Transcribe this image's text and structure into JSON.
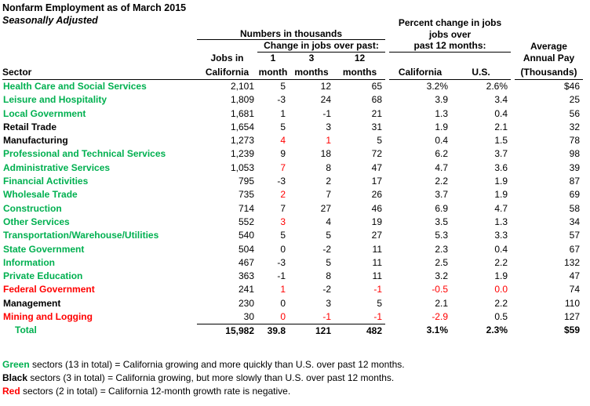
{
  "title": "Nonfarm Employment as of March 2015",
  "subtitle": "Seasonally Adjusted",
  "colors": {
    "green": "#00B050",
    "black": "#000000",
    "red": "#FF0000"
  },
  "header": {
    "numbers_group": "Numbers in thousands",
    "change_group": "Change in jobs over past:",
    "percent_line1": "Percent change in jobs",
    "percent_line2": "jobs over",
    "percent_line3": "past 12 months:",
    "pay_line1": "Average",
    "pay_line2": "Annual Pay",
    "pay_line3": "(Thousands)",
    "sector": "Sector",
    "jobs_line1": "Jobs in",
    "jobs_line2": "California",
    "mo1_line1": "1",
    "mo1_line2": "month",
    "mo3_line1": "3",
    "mo3_line2": "months",
    "mo12_line1": "12",
    "mo12_line2": "months",
    "ca": "California",
    "us": "U.S."
  },
  "table": {
    "columns": [
      "Jobs in California",
      "1 month",
      "3 months",
      "12 months",
      "California %",
      "U.S. %",
      "Average Annual Pay (Thousands)"
    ],
    "rows": [
      {
        "sector": "Health Care and Social Services",
        "color": "green",
        "cells": [
          {
            "v": "2,101"
          },
          {
            "v": "5"
          },
          {
            "v": "12"
          },
          {
            "v": "65"
          },
          {
            "v": "3.2%"
          },
          {
            "v": "2.6%"
          },
          {
            "v": "$46"
          }
        ]
      },
      {
        "sector": "Leisure and Hospitality",
        "color": "green",
        "cells": [
          {
            "v": "1,809"
          },
          {
            "v": "-3"
          },
          {
            "v": "24"
          },
          {
            "v": "68"
          },
          {
            "v": "3.9"
          },
          {
            "v": "3.4"
          },
          {
            "v": "25"
          }
        ]
      },
      {
        "sector": "Local Government",
        "color": "green",
        "cells": [
          {
            "v": "1,681"
          },
          {
            "v": "1"
          },
          {
            "v": "-1"
          },
          {
            "v": "21"
          },
          {
            "v": "1.3"
          },
          {
            "v": "0.4"
          },
          {
            "v": "56"
          }
        ]
      },
      {
        "sector": "Retail Trade",
        "color": "black",
        "cells": [
          {
            "v": "1,654"
          },
          {
            "v": "5"
          },
          {
            "v": "3"
          },
          {
            "v": "31"
          },
          {
            "v": "1.9"
          },
          {
            "v": "2.1"
          },
          {
            "v": "32"
          }
        ]
      },
      {
        "sector": "Manufacturing",
        "color": "black",
        "cells": [
          {
            "v": "1,273"
          },
          {
            "v": "4",
            "red": true
          },
          {
            "v": "1",
            "red": true
          },
          {
            "v": "5"
          },
          {
            "v": "0.4"
          },
          {
            "v": "1.5"
          },
          {
            "v": "78"
          }
        ]
      },
      {
        "sector": "Professional and Technical Services",
        "color": "green",
        "cells": [
          {
            "v": "1,239"
          },
          {
            "v": "9"
          },
          {
            "v": "18"
          },
          {
            "v": "72"
          },
          {
            "v": "6.2"
          },
          {
            "v": "3.7"
          },
          {
            "v": "98"
          }
        ]
      },
      {
        "sector": "Administrative Services",
        "color": "green",
        "cells": [
          {
            "v": "1,053"
          },
          {
            "v": "7",
            "red": true
          },
          {
            "v": "8"
          },
          {
            "v": "47"
          },
          {
            "v": "4.7"
          },
          {
            "v": "3.6"
          },
          {
            "v": "39"
          }
        ]
      },
      {
        "sector": "Financial Activities",
        "color": "green",
        "cells": [
          {
            "v": "795"
          },
          {
            "v": "-3"
          },
          {
            "v": "2"
          },
          {
            "v": "17"
          },
          {
            "v": "2.2"
          },
          {
            "v": "1.9"
          },
          {
            "v": "87"
          }
        ]
      },
      {
        "sector": "Wholesale Trade",
        "color": "green",
        "cells": [
          {
            "v": "735"
          },
          {
            "v": "2",
            "red": true
          },
          {
            "v": "7"
          },
          {
            "v": "26"
          },
          {
            "v": "3.7"
          },
          {
            "v": "1.9"
          },
          {
            "v": "69"
          }
        ]
      },
      {
        "sector": "Construction",
        "color": "green",
        "cells": [
          {
            "v": "714"
          },
          {
            "v": "7"
          },
          {
            "v": "27"
          },
          {
            "v": "46"
          },
          {
            "v": "6.9"
          },
          {
            "v": "4.7"
          },
          {
            "v": "58"
          }
        ]
      },
      {
        "sector": "Other Services",
        "color": "green",
        "cells": [
          {
            "v": "552"
          },
          {
            "v": "3",
            "red": true
          },
          {
            "v": "4"
          },
          {
            "v": "19"
          },
          {
            "v": "3.5"
          },
          {
            "v": "1.3"
          },
          {
            "v": "34"
          }
        ]
      },
      {
        "sector": "Transportation/Warehouse/Utilities",
        "color": "green",
        "cells": [
          {
            "v": "540"
          },
          {
            "v": "5"
          },
          {
            "v": "5"
          },
          {
            "v": "27"
          },
          {
            "v": "5.3"
          },
          {
            "v": "3.3"
          },
          {
            "v": "57"
          }
        ]
      },
      {
        "sector": "State Government",
        "color": "green",
        "cells": [
          {
            "v": "504"
          },
          {
            "v": "0"
          },
          {
            "v": "-2"
          },
          {
            "v": "11"
          },
          {
            "v": "2.3"
          },
          {
            "v": "0.4"
          },
          {
            "v": "67"
          }
        ]
      },
      {
        "sector": "Information",
        "color": "green",
        "cells": [
          {
            "v": "467"
          },
          {
            "v": "-3"
          },
          {
            "v": "5"
          },
          {
            "v": "11"
          },
          {
            "v": "2.5"
          },
          {
            "v": "2.2"
          },
          {
            "v": "132"
          }
        ]
      },
      {
        "sector": "Private Education",
        "color": "green",
        "cells": [
          {
            "v": "363"
          },
          {
            "v": "-1"
          },
          {
            "v": "8"
          },
          {
            "v": "11"
          },
          {
            "v": "3.2"
          },
          {
            "v": "1.9"
          },
          {
            "v": "47"
          }
        ]
      },
      {
        "sector": "Federal Government",
        "color": "red",
        "cells": [
          {
            "v": "241"
          },
          {
            "v": "1",
            "red": true
          },
          {
            "v": "-2"
          },
          {
            "v": "-1",
            "red": true
          },
          {
            "v": "-0.5",
            "red": true
          },
          {
            "v": "0.0",
            "red": true
          },
          {
            "v": "74"
          }
        ]
      },
      {
        "sector": "Management",
        "color": "black",
        "cells": [
          {
            "v": "230"
          },
          {
            "v": "0"
          },
          {
            "v": "3"
          },
          {
            "v": "5"
          },
          {
            "v": "2.1"
          },
          {
            "v": "2.2"
          },
          {
            "v": "110"
          }
        ]
      },
      {
        "sector": "Mining and Logging",
        "color": "red",
        "cells": [
          {
            "v": "30"
          },
          {
            "v": "0",
            "red": true
          },
          {
            "v": "-1",
            "red": true
          },
          {
            "v": "-1",
            "red": true
          },
          {
            "v": "-2.9",
            "red": true
          },
          {
            "v": "0.5"
          },
          {
            "v": "127"
          }
        ]
      }
    ],
    "total": {
      "sector": "Total",
      "color": "green",
      "cells": [
        {
          "v": "15,982"
        },
        {
          "v": "39.8"
        },
        {
          "v": "121"
        },
        {
          "v": "482"
        },
        {
          "v": "3.1%"
        },
        {
          "v": "2.3%"
        },
        {
          "v": "$59"
        }
      ]
    }
  },
  "notes": [
    {
      "word": "Green",
      "color": "green",
      "rest": " sectors (13 in total) = California growing and more quickly than U.S. over past 12 months."
    },
    {
      "word": "Black",
      "color": "black",
      "rest": " sectors (3 in total) = California growing, but more slowly than U.S. over past 12 months."
    },
    {
      "word": "Red",
      "color": "red",
      "rest": " sectors (2 in total) = California 12-month growth rate is negative."
    }
  ]
}
